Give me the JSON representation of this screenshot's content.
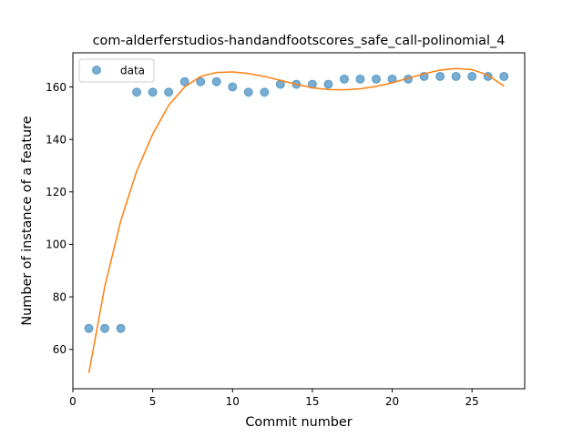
{
  "chart_data": {
    "type": "scatter",
    "title": "com-alderferstudios-handandfootscores_safe_call-polinomial_4",
    "xlabel": "Commit number",
    "ylabel": "Number of instance of a feature",
    "xlim": [
      0,
      28.3
    ],
    "ylim": [
      45,
      173
    ],
    "xticks": [
      0,
      5,
      10,
      15,
      20,
      25
    ],
    "yticks": [
      60,
      80,
      100,
      120,
      140,
      160
    ],
    "grid": false,
    "legend": {
      "location": "top-left",
      "entries": [
        "data"
      ]
    },
    "series": [
      {
        "name": "data",
        "kind": "scatter",
        "color": "#1f77b4",
        "x": [
          1,
          2,
          3,
          4,
          5,
          6,
          7,
          8,
          9,
          10,
          11,
          12,
          13,
          14,
          15,
          16,
          17,
          18,
          19,
          20,
          21,
          22,
          23,
          24,
          25,
          26,
          27
        ],
        "y": [
          68,
          68,
          68,
          158,
          158,
          158,
          162,
          162,
          162,
          160,
          158,
          158,
          161,
          161,
          161,
          161,
          163,
          163,
          163,
          163,
          163,
          164,
          164,
          164,
          164,
          164,
          164
        ]
      },
      {
        "kind": "line",
        "color": "#ff7f0e",
        "x": [
          1,
          2,
          3,
          4,
          5,
          6,
          7,
          8,
          9,
          10,
          11,
          12,
          13,
          14,
          15,
          16,
          17,
          18,
          19,
          20,
          21,
          22,
          23,
          24,
          25,
          26,
          27
        ],
        "y": [
          51,
          84,
          109,
          128,
          142,
          153,
          160,
          164,
          165.5,
          165.7,
          165.1,
          164,
          162.5,
          161,
          159.7,
          159,
          158.9,
          159.3,
          160.2,
          161.6,
          163.3,
          165,
          166.4,
          167,
          166.6,
          164.5,
          160.3
        ]
      }
    ]
  }
}
